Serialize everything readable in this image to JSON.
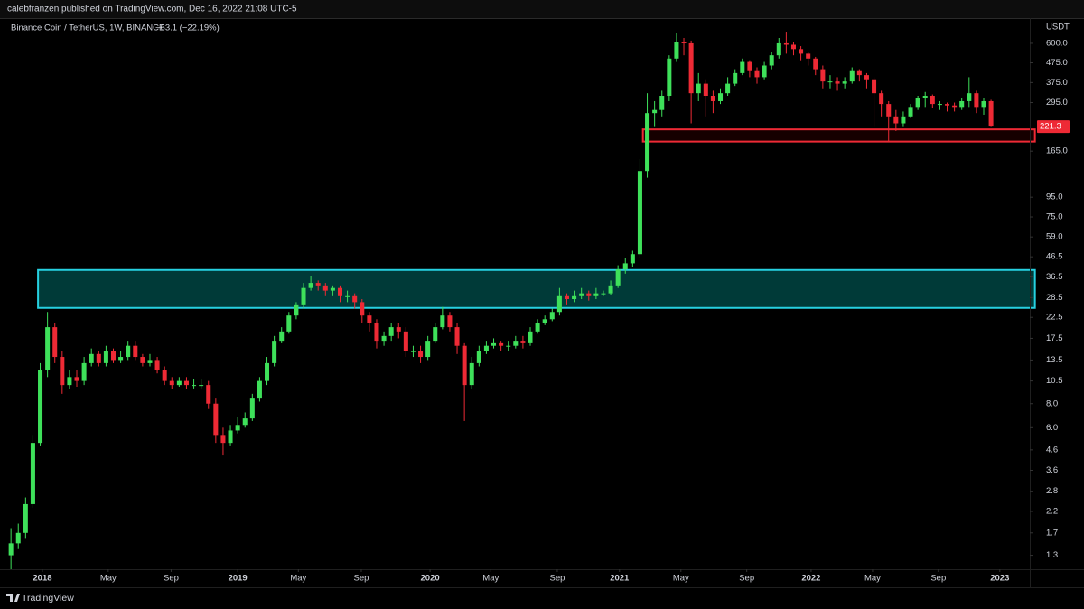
{
  "header": {
    "text": "calebfranzen published on TradingView.com, Dec 16, 2022 21:08 UTC-5"
  },
  "footer": {
    "logo": "TradingView"
  },
  "chart_data": {
    "type": "candlestick",
    "symbol": "Binance Coin / TetherUS, 1W, BINANCE",
    "change": "−63.1 (−22.19%)",
    "currency": "USDT",
    "log_scale": true,
    "grid": false,
    "up_color": "#3ee05a",
    "down_color": "#ee2a35",
    "ylim": [
      1.1,
      812
    ],
    "yticks": [
      {
        "value": 600,
        "label": "600.0"
      },
      {
        "value": 475,
        "label": "475.0"
      },
      {
        "value": 375,
        "label": "375.0"
      },
      {
        "value": 295,
        "label": "295.0"
      },
      {
        "value": 165,
        "label": "165.0"
      },
      {
        "value": 95,
        "label": "95.0"
      },
      {
        "value": 75,
        "label": "75.0"
      },
      {
        "value": 59,
        "label": "59.0"
      },
      46.5,
      36.5,
      28.5,
      22.5,
      17.5,
      13.5,
      10.5,
      {
        "value": 8,
        "label": "8.0"
      },
      {
        "value": 6,
        "label": "6.0"
      },
      4.6,
      3.6,
      2.8,
      2.2,
      1.7,
      1.3
    ],
    "xlim": [
      -1.5,
      139.3
    ],
    "xticks": [
      {
        "value": 4.3,
        "label": "2018"
      },
      {
        "value": 13.3,
        "label": "May"
      },
      {
        "value": 21.9,
        "label": "Sep"
      },
      {
        "value": 31.0,
        "label": "2019"
      },
      {
        "value": 39.3,
        "label": "May"
      },
      {
        "value": 47.9,
        "label": "Sep"
      },
      {
        "value": 57.3,
        "label": "2020"
      },
      {
        "value": 65.6,
        "label": "May"
      },
      {
        "value": 74.7,
        "label": "Sep"
      },
      {
        "value": 83.2,
        "label": "2021"
      },
      {
        "value": 91.6,
        "label": "May"
      },
      {
        "value": 100.6,
        "label": "Sep"
      },
      {
        "value": 109.4,
        "label": "2022"
      },
      {
        "value": 117.8,
        "label": "May"
      },
      {
        "value": 126.8,
        "label": "Sep"
      },
      {
        "value": 135.2,
        "label": "2023"
      }
    ],
    "zones": [
      {
        "x": [
          3.7,
          140
        ],
        "y": [
          25.2,
          39.7
        ],
        "color": "#26d0e0",
        "fill": "#003a38"
      },
      {
        "x": [
          86.4,
          140
        ],
        "y": [
          185,
          214
        ],
        "color": "#ee2a35",
        "fill": "#160000"
      }
    ],
    "open": [
      1.3,
      1.5,
      1.7,
      2.4,
      5,
      12,
      20,
      14,
      10,
      11,
      10.5,
      13,
      14.5,
      13,
      15,
      13.5,
      14,
      16,
      14,
      13,
      13.5,
      12,
      10.5,
      10,
      10.5,
      10,
      10,
      10,
      8,
      5.5,
      5,
      5.8,
      6.2,
      6.7,
      8.5,
      10.5,
      13,
      17,
      19,
      23,
      26,
      32,
      34,
      33,
      31,
      32,
      29,
      29,
      27,
      23,
      21,
      17,
      18,
      20,
      19,
      15,
      15,
      14,
      17,
      20,
      23,
      20,
      16,
      10,
      13,
      15,
      16,
      16.5,
      16,
      16,
      17,
      16.5,
      19,
      21,
      22,
      24,
      29,
      28,
      29,
      30,
      29,
      30,
      30,
      33,
      40,
      43,
      48,
      130,
      260,
      270,
      320,
      500,
      610,
      600,
      330,
      370,
      320,
      300,
      330,
      370,
      420,
      480,
      430,
      400,
      460,
      520,
      600,
      590,
      560,
      530,
      500,
      440,
      380,
      380,
      370,
      380,
      430,
      410,
      390,
      330,
      290,
      250,
      230,
      250,
      280,
      310,
      320,
      290,
      290,
      285,
      280,
      300,
      330,
      280,
      300
    ],
    "high": [
      1.8,
      1.9,
      2.6,
      5.5,
      13,
      24,
      21,
      15,
      12,
      12,
      14,
      15.5,
      15,
      16,
      15.5,
      15,
      17,
      17,
      14.5,
      14.5,
      14,
      12.5,
      11,
      11,
      11,
      10.8,
      10.8,
      10.5,
      8.5,
      6,
      6.2,
      6.8,
      7.2,
      9,
      11,
      14,
      18,
      20,
      24,
      27,
      34,
      37,
      35,
      34,
      33,
      33,
      31,
      30,
      28,
      24,
      22,
      19,
      21,
      21,
      20,
      16,
      16,
      18,
      21,
      25.5,
      24,
      21,
      16.5,
      14,
      16,
      17,
      17.5,
      17,
      17,
      18,
      18,
      20,
      22,
      23,
      25,
      32,
      30,
      31,
      32,
      31,
      32,
      31,
      35,
      42,
      46,
      50,
      150,
      330,
      300,
      340,
      520,
      680,
      640,
      620,
      420,
      390,
      340,
      350,
      400,
      440,
      500,
      490,
      450,
      480,
      540,
      640,
      690,
      610,
      580,
      540,
      510,
      460,
      410,
      400,
      400,
      450,
      440,
      420,
      400,
      340,
      300,
      270,
      265,
      290,
      320,
      335,
      325,
      300,
      295,
      295,
      310,
      400,
      340,
      310,
      305
    ],
    "low": [
      1.1,
      1.4,
      1.6,
      2.3,
      4.8,
      11,
      13,
      9,
      9.5,
      9.8,
      10,
      12.5,
      12.5,
      12.5,
      13,
      13,
      13.5,
      13.5,
      12.5,
      12.5,
      11.5,
      10,
      9.5,
      9.8,
      9.5,
      9.6,
      9.6,
      7.5,
      5,
      4.3,
      4.8,
      5.6,
      6,
      6.5,
      8.2,
      10,
      12.5,
      16.5,
      18.5,
      22,
      25,
      31,
      31,
      29,
      29,
      27,
      27,
      25,
      21,
      19,
      15.5,
      16,
      17,
      17.5,
      14,
      14,
      13,
      13.5,
      16.5,
      19.5,
      19,
      14.5,
      6.5,
      9.5,
      12.5,
      14.5,
      15.5,
      15,
      15,
      15.5,
      15.5,
      16,
      18.5,
      20.5,
      21.5,
      23,
      26,
      27,
      28,
      27.5,
      28,
      29,
      29.5,
      32,
      38,
      41,
      46,
      120,
      220,
      250,
      300,
      480,
      520,
      230,
      300,
      250,
      260,
      290,
      320,
      360,
      410,
      400,
      370,
      390,
      440,
      500,
      530,
      520,
      490,
      460,
      410,
      350,
      350,
      340,
      350,
      370,
      380,
      350,
      220,
      250,
      185,
      210,
      220,
      245,
      270,
      280,
      275,
      270,
      265,
      265,
      270,
      280,
      260,
      255,
      220
    ],
    "close": [
      1.5,
      1.7,
      2.4,
      5,
      12,
      20,
      14,
      10,
      11,
      10.5,
      13,
      14.5,
      13,
      15,
      13.5,
      14,
      16,
      14,
      13,
      13.5,
      12,
      10.5,
      10,
      10.5,
      10,
      10,
      10,
      8,
      5.5,
      5,
      5.8,
      6.2,
      6.7,
      8.5,
      10.5,
      13,
      17,
      19,
      23,
      26,
      32,
      34,
      33,
      31,
      32,
      29,
      29,
      27,
      23,
      21,
      17,
      18,
      20,
      19,
      15,
      15,
      14,
      17,
      20,
      23,
      20,
      16,
      10,
      13,
      15,
      16,
      16.5,
      16,
      16,
      17,
      16.5,
      19,
      21,
      22,
      24,
      29,
      28,
      29,
      30,
      29,
      30,
      30,
      33,
      40,
      43,
      48,
      130,
      260,
      270,
      320,
      500,
      610,
      600,
      330,
      370,
      320,
      300,
      330,
      370,
      420,
      480,
      430,
      400,
      460,
      520,
      600,
      590,
      560,
      530,
      500,
      440,
      380,
      380,
      370,
      380,
      430,
      410,
      390,
      330,
      290,
      250,
      230,
      250,
      280,
      310,
      320,
      290,
      290,
      285,
      280,
      300,
      330,
      280,
      300,
      221.3
    ]
  }
}
